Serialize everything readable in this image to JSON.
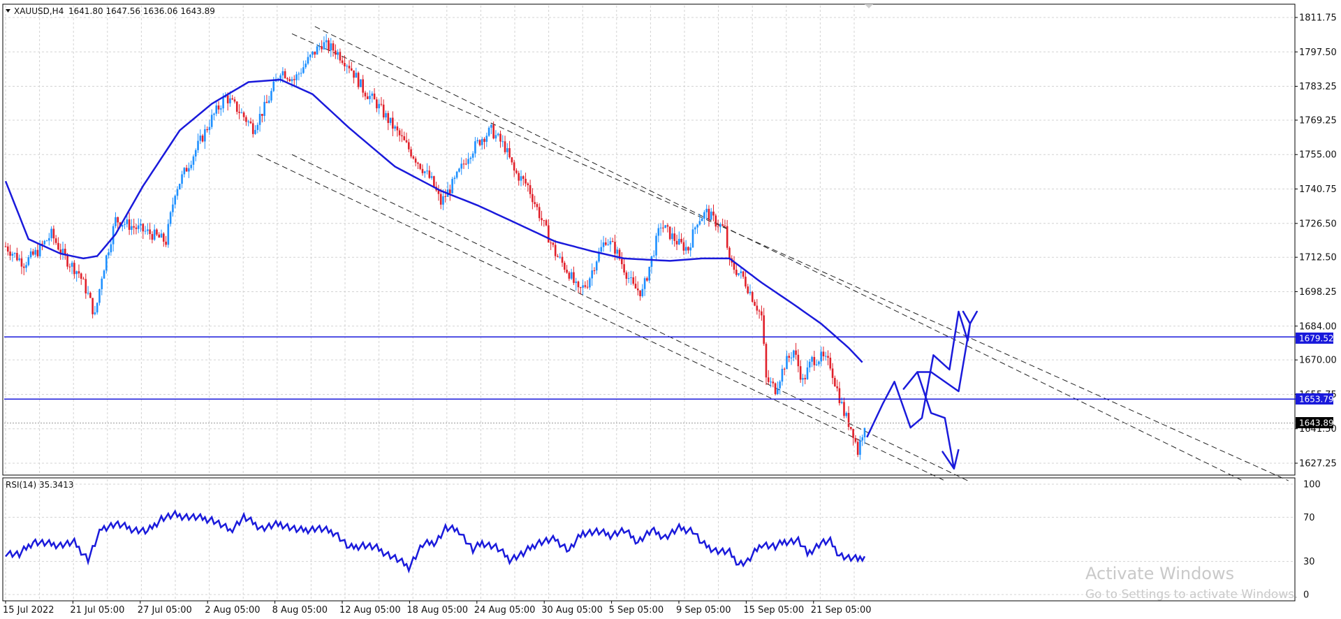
{
  "header": {
    "symbol": "XAUUSD,H4",
    "ohlc": "1641.80 1647.56 1636.06 1643.89"
  },
  "rsi_header": "RSI(14) 35.3413",
  "watermark": {
    "title": "Activate Windows",
    "subtitle": "Go to Settings to activate Windows."
  },
  "price_tags": {
    "level_high": "1679.52",
    "level_low": "1653.79",
    "current": "1643.89"
  },
  "price_axis_labels": [
    "1811.75",
    "1797.50",
    "1783.25",
    "1769.25",
    "1755.00",
    "1740.75",
    "1726.50",
    "1712.50",
    "1698.25",
    "1684.00",
    "1670.00",
    "1655.75",
    "1641.50",
    "1627.25"
  ],
  "rsi_axis_labels": [
    "100",
    "70",
    "30",
    "0"
  ],
  "time_labels": [
    "15 Jul 2022",
    "21 Jul 05:00",
    "27 Jul 05:00",
    "2 Aug 05:00",
    "8 Aug 05:00",
    "12 Aug 05:00",
    "18 Aug 05:00",
    "24 Aug 05:00",
    "30 Aug 05:00",
    "5 Sep 05:00",
    "9 Sep 05:00",
    "15 Sep 05:00",
    "21 Sep 05:00"
  ],
  "colors": {
    "bull": "#1e90ff",
    "bear": "#e0202a",
    "ma": "#1a1adb",
    "level": "#1a1adb",
    "rsi": "#1a1adb",
    "grid": "#d3d3d3",
    "current_tag": "#000000"
  },
  "chart_data": [
    {
      "type": "candlestick",
      "title": "XAUUSD,H4",
      "ylim": [
        1620,
        1815
      ],
      "levels": [
        1679.52,
        1653.79
      ],
      "current_price": 1643.89,
      "close_path": [
        [
          0,
          1717
        ],
        [
          8,
          1710
        ],
        [
          14,
          1715
        ],
        [
          20,
          1722
        ],
        [
          26,
          1712
        ],
        [
          32,
          1706
        ],
        [
          36,
          1697
        ],
        [
          39,
          1688
        ],
        [
          42,
          1705
        ],
        [
          48,
          1728
        ],
        [
          56,
          1725
        ],
        [
          64,
          1722
        ],
        [
          70,
          1719
        ],
        [
          74,
          1740
        ],
        [
          82,
          1755
        ],
        [
          90,
          1770
        ],
        [
          96,
          1779
        ],
        [
          102,
          1773
        ],
        [
          108,
          1766
        ],
        [
          114,
          1776
        ],
        [
          120,
          1790
        ],
        [
          126,
          1786
        ],
        [
          132,
          1794
        ],
        [
          138,
          1801
        ],
        [
          144,
          1798
        ],
        [
          150,
          1792
        ],
        [
          156,
          1782
        ],
        [
          162,
          1776
        ],
        [
          168,
          1768
        ],
        [
          174,
          1760
        ],
        [
          180,
          1752
        ],
        [
          186,
          1744
        ],
        [
          190,
          1735
        ],
        [
          196,
          1744
        ],
        [
          202,
          1755
        ],
        [
          208,
          1762
        ],
        [
          212,
          1765
        ],
        [
          218,
          1758
        ],
        [
          222,
          1748
        ],
        [
          228,
          1742
        ],
        [
          234,
          1728
        ],
        [
          240,
          1714
        ],
        [
          246,
          1706
        ],
        [
          250,
          1698
        ],
        [
          254,
          1702
        ],
        [
          258,
          1712
        ],
        [
          262,
          1720
        ],
        [
          266,
          1716
        ],
        [
          270,
          1708
        ],
        [
          274,
          1700
        ],
        [
          278,
          1698
        ],
        [
          282,
          1712
        ],
        [
          286,
          1726
        ],
        [
          290,
          1722
        ],
        [
          294,
          1718
        ],
        [
          298,
          1716
        ],
        [
          302,
          1728
        ],
        [
          306,
          1731
        ],
        [
          310,
          1727
        ],
        [
          314,
          1724
        ],
        [
          316,
          1710
        ],
        [
          322,
          1704
        ],
        [
          326,
          1696
        ],
        [
          330,
          1688
        ],
        [
          332,
          1662
        ],
        [
          336,
          1658
        ],
        [
          340,
          1668
        ],
        [
          344,
          1674
        ],
        [
          348,
          1661
        ],
        [
          352,
          1670
        ],
        [
          356,
          1671
        ],
        [
          360,
          1668
        ],
        [
          362,
          1661
        ],
        [
          366,
          1648
        ],
        [
          370,
          1640
        ],
        [
          372,
          1632
        ],
        [
          375,
          1643.89
        ]
      ],
      "ma_path": [
        [
          0,
          1744
        ],
        [
          10,
          1720
        ],
        [
          24,
          1714
        ],
        [
          34,
          1712
        ],
        [
          40,
          1713
        ],
        [
          48,
          1722
        ],
        [
          60,
          1742
        ],
        [
          76,
          1765
        ],
        [
          90,
          1776
        ],
        [
          106,
          1785
        ],
        [
          120,
          1786
        ],
        [
          134,
          1780
        ],
        [
          150,
          1766
        ],
        [
          170,
          1750
        ],
        [
          190,
          1740
        ],
        [
          206,
          1734
        ],
        [
          222,
          1727
        ],
        [
          240,
          1719
        ],
        [
          256,
          1715
        ],
        [
          270,
          1712
        ],
        [
          290,
          1711
        ],
        [
          304,
          1712
        ],
        [
          316,
          1712
        ],
        [
          330,
          1702
        ],
        [
          344,
          1693
        ],
        [
          356,
          1685
        ],
        [
          368,
          1675
        ],
        [
          375,
          1668
        ]
      ],
      "channel_lines": [
        {
          "from": [
            135,
            1808
          ],
          "to": [
            540,
            1620
          ]
        },
        {
          "from": [
            125,
            1805
          ],
          "to": [
            560,
            1620
          ]
        },
        {
          "from": [
            110,
            1755
          ],
          "to": [
            410,
            1620
          ]
        },
        {
          "from": [
            125,
            1755
          ],
          "to": [
            420,
            1620
          ]
        }
      ],
      "projection_path": [
        [
          376,
          1638
        ],
        [
          383,
          1652
        ],
        [
          388,
          1661
        ],
        [
          395,
          1642
        ],
        [
          400,
          1646
        ],
        [
          405,
          1672
        ],
        [
          412,
          1666
        ],
        [
          416,
          1690
        ],
        [
          420,
          1678
        ],
        [
          421,
          1685
        ],
        [
          418,
          1690
        ],
        [
          421,
          1685
        ],
        [
          424,
          1690
        ],
        [
          421,
          1685
        ],
        [
          416,
          1657
        ],
        [
          404,
          1665
        ],
        [
          398,
          1665
        ],
        [
          392,
          1658
        ],
        [
          398,
          1665
        ],
        [
          404,
          1648
        ],
        [
          410,
          1646
        ],
        [
          414,
          1625
        ],
        [
          409,
          1632
        ],
        [
          414,
          1625
        ],
        [
          416,
          1633
        ]
      ]
    },
    {
      "type": "line",
      "title": "RSI(14) 35.3413",
      "ylim": [
        0,
        100
      ],
      "ticks": [
        0,
        30,
        70,
        100
      ],
      "current": 35.3413,
      "values_path": [
        [
          0,
          38
        ],
        [
          6,
          36
        ],
        [
          12,
          48
        ],
        [
          18,
          46
        ],
        [
          24,
          45
        ],
        [
          30,
          47
        ],
        [
          36,
          32
        ],
        [
          42,
          60
        ],
        [
          48,
          64
        ],
        [
          56,
          59
        ],
        [
          62,
          57
        ],
        [
          68,
          69
        ],
        [
          74,
          72
        ],
        [
          82,
          70
        ],
        [
          90,
          68
        ],
        [
          98,
          58
        ],
        [
          104,
          70
        ],
        [
          112,
          60
        ],
        [
          120,
          64
        ],
        [
          128,
          58
        ],
        [
          136,
          60
        ],
        [
          144,
          56
        ],
        [
          150,
          42
        ],
        [
          156,
          45
        ],
        [
          162,
          42
        ],
        [
          170,
          33
        ],
        [
          176,
          25
        ],
        [
          182,
          45
        ],
        [
          188,
          48
        ],
        [
          192,
          60
        ],
        [
          198,
          58
        ],
        [
          204,
          40
        ],
        [
          208,
          47
        ],
        [
          214,
          43
        ],
        [
          220,
          32
        ],
        [
          226,
          37
        ],
        [
          232,
          47
        ],
        [
          240,
          50
        ],
        [
          246,
          40
        ],
        [
          252,
          56
        ],
        [
          258,
          57
        ],
        [
          264,
          54
        ],
        [
          270,
          58
        ],
        [
          276,
          48
        ],
        [
          282,
          58
        ],
        [
          288,
          52
        ],
        [
          294,
          60
        ],
        [
          300,
          58
        ],
        [
          304,
          46
        ],
        [
          310,
          40
        ],
        [
          316,
          38
        ],
        [
          320,
          28
        ],
        [
          324,
          30
        ],
        [
          330,
          46
        ],
        [
          336,
          43
        ],
        [
          340,
          48
        ],
        [
          346,
          49
        ],
        [
          350,
          37
        ],
        [
          356,
          47
        ],
        [
          360,
          48
        ],
        [
          364,
          36
        ],
        [
          368,
          33
        ],
        [
          372,
          32
        ],
        [
          375,
          35.34
        ]
      ]
    }
  ]
}
